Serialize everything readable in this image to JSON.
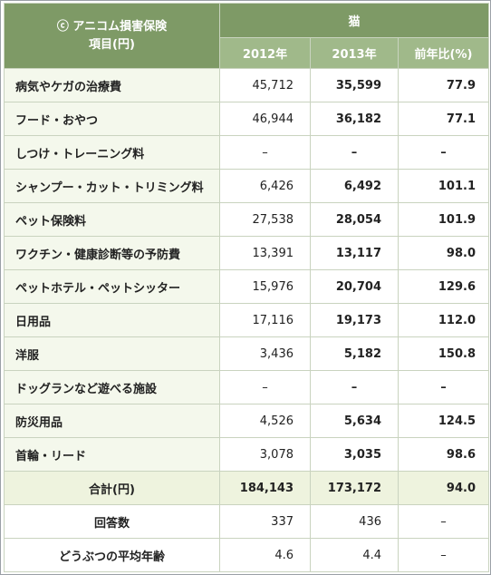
{
  "header": {
    "corner_line1": "ⓒ アニコム損害保険",
    "corner_line2": "項目(円)",
    "group": "猫",
    "columns": [
      "2012年",
      "2013年",
      "前年比(%)"
    ]
  },
  "rows": [
    {
      "label": "病気やケガの治療費",
      "v2012": "45,712",
      "v2013": "35,599",
      "ratio": "77.9"
    },
    {
      "label": "フード・おやつ",
      "v2012": "46,944",
      "v2013": "36,182",
      "ratio": "77.1"
    },
    {
      "label": "しつけ・トレーニング料",
      "v2012": "–",
      "v2013": "–",
      "ratio": "–"
    },
    {
      "label": "シャンプー・カット・トリミング料",
      "v2012": "6,426",
      "v2013": "6,492",
      "ratio": "101.1"
    },
    {
      "label": "ペット保険料",
      "v2012": "27,538",
      "v2013": "28,054",
      "ratio": "101.9"
    },
    {
      "label": "ワクチン・健康診断等の予防費",
      "v2012": "13,391",
      "v2013": "13,117",
      "ratio": "98.0"
    },
    {
      "label": "ペットホテル・ペットシッター",
      "v2012": "15,976",
      "v2013": "20,704",
      "ratio": "129.6"
    },
    {
      "label": "日用品",
      "v2012": "17,116",
      "v2013": "19,173",
      "ratio": "112.0"
    },
    {
      "label": "洋服",
      "v2012": "3,436",
      "v2013": "5,182",
      "ratio": "150.8"
    },
    {
      "label": "ドッグランなど遊べる施設",
      "v2012": "–",
      "v2013": "–",
      "ratio": "–"
    },
    {
      "label": "防災用品",
      "v2012": "4,526",
      "v2013": "5,634",
      "ratio": "124.5"
    },
    {
      "label": "首輪・リード",
      "v2012": "3,078",
      "v2013": "3,035",
      "ratio": "98.6"
    }
  ],
  "total": {
    "label": "合計(円)",
    "v2012": "184,143",
    "v2013": "173,172",
    "ratio": "94.0"
  },
  "respondents": {
    "label": "回答数",
    "v2012": "337",
    "v2013": "436",
    "ratio": "–"
  },
  "avg_age": {
    "label": "どうぶつの平均年齢",
    "v2012": "4.6",
    "v2013": "4.4",
    "ratio": "–"
  }
}
